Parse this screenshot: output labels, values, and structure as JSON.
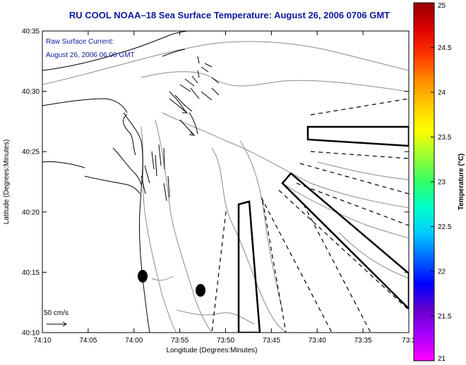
{
  "title": "RU COOL  NOAA–18  Sea Surface Temperature:  August 26, 2006 0706 GMT",
  "annotations": {
    "current_line1": "Raw Surface Current:",
    "current_line2": "August 26, 2006 06:00 GMT",
    "scale_label": "50 cm/s"
  },
  "axes": {
    "xlabel": "Longitude (Degrees:Minutes)",
    "ylabel": "Latitude (Degrees:Minutes)",
    "x_ticks": [
      "74:10",
      "74:05",
      "74:00",
      "73:55",
      "73:50",
      "73:45",
      "73:40",
      "73:35",
      "73:3"
    ],
    "y_ticks": [
      "40:35",
      "40:30",
      "40:25",
      "40:20",
      "40:15",
      "40:10"
    ]
  },
  "colorbar": {
    "label": "Temperature (°C)",
    "ticks": [
      "25",
      "24.5",
      "24",
      "23.5",
      "23",
      "22.5",
      "22",
      "21.5",
      "21"
    ],
    "colors": [
      "#990000",
      "#dd0000",
      "#ff3300",
      "#ff8800",
      "#ffcc00",
      "#ffff00",
      "#99ff33",
      "#33ff66",
      "#00ffcc",
      "#00ccff",
      "#0066ff",
      "#0000ff",
      "#6600cc",
      "#aa00ff",
      "#ff00ff"
    ]
  },
  "map": {
    "coastline_color": "#000000",
    "bathymetry_color": "#888888",
    "region": "New Jersey coast / NY Bight"
  }
}
